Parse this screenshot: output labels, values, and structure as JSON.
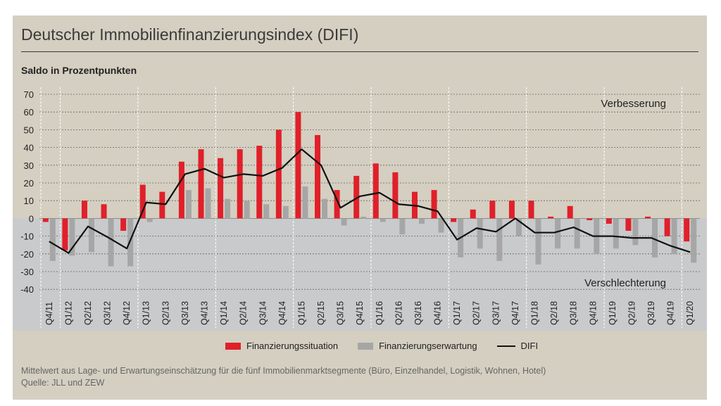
{
  "title": "Deutscher Immobilienfinanzierungsindex (DIFI)",
  "footnote": {
    "line1": "Mittelwert aus Lage- und Erwartungseinschätzung für die fünf Immobilienmarktsegmente (Büro, Einzelhandel, Logistik, Wohnen, Hotel)",
    "line2": "Quelle: JLL und ZEW"
  },
  "colors": {
    "upper_area": "#d4cfc1",
    "lower_area": "#c9cacb",
    "situation": "#e0202a",
    "expectation": "#a6a6a6",
    "difi": "#111111"
  },
  "chart_data": {
    "type": "bar",
    "ylabel": "Saldo in Prozentpunkten",
    "ylim": [
      -40,
      70
    ],
    "yticks": [
      70,
      60,
      50,
      40,
      30,
      20,
      10,
      0,
      -10,
      -20,
      -30,
      -40
    ],
    "annotations": {
      "upper": "Verbesserung",
      "lower": "Verschlechterung"
    },
    "categories": [
      "Q4/11",
      "Q1/12",
      "Q2/12",
      "Q3/12",
      "Q4/12",
      "Q1/13",
      "Q2/13",
      "Q3/13",
      "Q4/13",
      "Q1/14",
      "Q2/14",
      "Q3/14",
      "Q4/14",
      "Q1/15",
      "Q2/15",
      "Q3/15",
      "Q4/15",
      "Q1/16",
      "Q2/16",
      "Q3/16",
      "Q4/16",
      "Q1/17",
      "Q2/17",
      "Q3/17",
      "Q4/17",
      "Q1/18",
      "Q2/18",
      "Q3/18",
      "Q4/18",
      "Q1/19",
      "Q2/19",
      "Q3/19",
      "Q4/19",
      "Q1/20"
    ],
    "series": [
      {
        "name": "Finanzierungssituation",
        "kind": "bar",
        "values": [
          -2,
          -18,
          10,
          8,
          -7,
          19,
          15,
          32,
          39,
          34,
          39,
          41,
          50,
          60,
          47,
          16,
          24,
          31,
          26,
          15,
          16,
          -2,
          5,
          10,
          10,
          10,
          1,
          7,
          -1,
          -3,
          -7,
          1,
          -10,
          -13
        ]
      },
      {
        "name": "Finanzierungserwartung",
        "kind": "bar",
        "values": [
          -24,
          -21,
          -19,
          -27,
          -27,
          -2,
          0,
          16,
          17,
          11,
          10,
          8,
          7,
          18,
          11,
          -4,
          1,
          -2,
          -9,
          -3,
          -8,
          -22,
          -17,
          -24,
          -10,
          -26,
          -17,
          -17,
          -20,
          -17,
          -15,
          -22,
          -20,
          -25
        ]
      },
      {
        "name": "DIFI",
        "kind": "line",
        "values": [
          -13,
          -19.5,
          -4.5,
          -10.5,
          -17,
          9,
          8,
          25,
          28,
          23,
          25,
          24,
          28.5,
          39,
          30,
          6,
          12.5,
          14.5,
          8,
          7,
          4,
          -12,
          -5.5,
          -7.5,
          0,
          -8,
          -8,
          -5,
          -10,
          -10,
          -11,
          -11,
          -15.5,
          -19
        ]
      }
    ]
  }
}
